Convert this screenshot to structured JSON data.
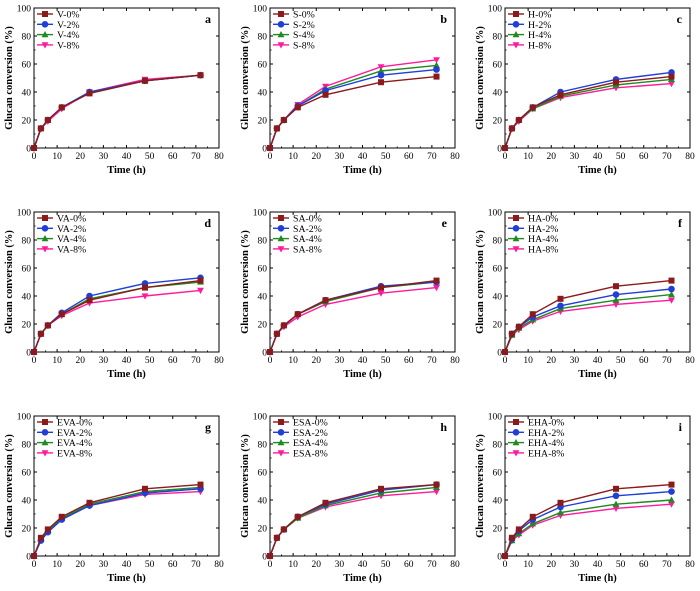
{
  "figure": {
    "colors": {
      "0%": "#8b1a1a",
      "2%": "#1f3fd6",
      "4%": "#1f8a1f",
      "8%": "#ff1a9c"
    },
    "markers": {
      "0%": "square",
      "2%": "circle",
      "4%": "triangle-up",
      "8%": "triangle-down"
    }
  },
  "chart_data": [
    {
      "type": "line",
      "panel_letter": "a",
      "xlabel": "Time (h)",
      "ylabel": "Glucan conversion (%)",
      "xlim": [
        0,
        80
      ],
      "ylim": [
        0,
        100
      ],
      "xticks": [
        "0",
        "10",
        "20",
        "30",
        "40",
        "50",
        "60",
        "70",
        "80"
      ],
      "yticks": [
        "0",
        "20",
        "40",
        "60",
        "80",
        "100"
      ],
      "x": [
        0,
        3,
        6,
        12,
        24,
        48,
        72
      ],
      "series": [
        {
          "name": "V-0%",
          "values": [
            0,
            14,
            20,
            29,
            39,
            48,
            52
          ]
        },
        {
          "name": "V-2%",
          "values": [
            0,
            14,
            20,
            29,
            40,
            48,
            52
          ]
        },
        {
          "name": "V-4%",
          "values": [
            0,
            14,
            20,
            29,
            40,
            48,
            52
          ]
        },
        {
          "name": "V-8%",
          "values": [
            0,
            14,
            19,
            28,
            40,
            49,
            52
          ]
        }
      ]
    },
    {
      "type": "line",
      "panel_letter": "b",
      "xlabel": "Time (h)",
      "ylabel": "Glucan conversion (%)",
      "xlim": [
        0,
        80
      ],
      "ylim": [
        0,
        100
      ],
      "xticks": [
        "0",
        "10",
        "20",
        "30",
        "40",
        "50",
        "60",
        "70",
        "80"
      ],
      "yticks": [
        "0",
        "20",
        "40",
        "60",
        "80",
        "100"
      ],
      "x": [
        0,
        3,
        6,
        12,
        24,
        48,
        72
      ],
      "series": [
        {
          "name": "S-0%",
          "values": [
            0,
            14,
            20,
            29,
            38,
            47,
            51
          ]
        },
        {
          "name": "S-2%",
          "values": [
            0,
            14,
            20,
            30,
            41,
            52,
            56
          ]
        },
        {
          "name": "S-4%",
          "values": [
            0,
            14,
            20,
            30,
            42,
            55,
            59
          ]
        },
        {
          "name": "S-8%",
          "values": [
            0,
            14,
            20,
            31,
            44,
            58,
            63
          ]
        }
      ]
    },
    {
      "type": "line",
      "panel_letter": "c",
      "xlabel": "Time (h)",
      "ylabel": "Glucan conversion (%)",
      "xlim": [
        0,
        80
      ],
      "ylim": [
        0,
        100
      ],
      "xticks": [
        "0",
        "10",
        "20",
        "30",
        "40",
        "50",
        "60",
        "70",
        "80"
      ],
      "yticks": [
        "0",
        "20",
        "40",
        "60",
        "80",
        "100"
      ],
      "x": [
        0,
        3,
        6,
        12,
        24,
        48,
        72
      ],
      "series": [
        {
          "name": "H-0%",
          "values": [
            0,
            14,
            20,
            29,
            38,
            47,
            51
          ]
        },
        {
          "name": "H-2%",
          "values": [
            0,
            14,
            20,
            29,
            40,
            49,
            54
          ]
        },
        {
          "name": "H-4%",
          "values": [
            0,
            14,
            20,
            28,
            37,
            45,
            49
          ]
        },
        {
          "name": "H-8%",
          "values": [
            0,
            14,
            19,
            28,
            36,
            43,
            46
          ]
        }
      ]
    },
    {
      "type": "line",
      "panel_letter": "d",
      "xlabel": "Time (h)",
      "ylabel": "Glucan conversion (%)",
      "xlim": [
        0,
        80
      ],
      "ylim": [
        0,
        100
      ],
      "xticks": [
        "0",
        "10",
        "20",
        "30",
        "40",
        "50",
        "60",
        "70",
        "80"
      ],
      "yticks": [
        "0",
        "20",
        "40",
        "60",
        "80",
        "100"
      ],
      "x": [
        0,
        3,
        6,
        12,
        24,
        48,
        72
      ],
      "series": [
        {
          "name": "VA-0%",
          "values": [
            0,
            13,
            19,
            27,
            37,
            46,
            51
          ]
        },
        {
          "name": "VA-2%",
          "values": [
            0,
            13,
            19,
            28,
            40,
            49,
            53
          ]
        },
        {
          "name": "VA-4%",
          "values": [
            0,
            13,
            19,
            27,
            38,
            46,
            50
          ]
        },
        {
          "name": "VA-8%",
          "values": [
            0,
            13,
            19,
            26,
            35,
            40,
            44
          ]
        }
      ]
    },
    {
      "type": "line",
      "panel_letter": "e",
      "xlabel": "Time (h)",
      "ylabel": "Glucan conversion (%)",
      "xlim": [
        0,
        80
      ],
      "ylim": [
        0,
        100
      ],
      "xticks": [
        "0",
        "10",
        "20",
        "30",
        "40",
        "50",
        "60",
        "70",
        "80"
      ],
      "yticks": [
        "0",
        "20",
        "40",
        "60",
        "80",
        "100"
      ],
      "x": [
        0,
        3,
        6,
        12,
        24,
        48,
        72
      ],
      "series": [
        {
          "name": "SA-0%",
          "values": [
            0,
            13,
            19,
            27,
            37,
            46,
            51
          ]
        },
        {
          "name": "SA-2%",
          "values": [
            0,
            13,
            19,
            27,
            37,
            47,
            50
          ]
        },
        {
          "name": "SA-4%",
          "values": [
            0,
            13,
            19,
            27,
            36,
            46,
            50
          ]
        },
        {
          "name": "SA-8%",
          "values": [
            0,
            13,
            18,
            25,
            34,
            42,
            46
          ]
        }
      ]
    },
    {
      "type": "line",
      "panel_letter": "f",
      "xlabel": "Time (h)",
      "ylabel": "Glucan conversion (%)",
      "xlim": [
        0,
        80
      ],
      "ylim": [
        0,
        100
      ],
      "xticks": [
        "0",
        "10",
        "20",
        "30",
        "40",
        "50",
        "60",
        "70",
        "80"
      ],
      "yticks": [
        "0",
        "20",
        "40",
        "60",
        "80",
        "100"
      ],
      "x": [
        0,
        3,
        6,
        12,
        24,
        48,
        72
      ],
      "series": [
        {
          "name": "HA-0%",
          "values": [
            0,
            13,
            18,
            27,
            38,
            47,
            51
          ]
        },
        {
          "name": "HA-2%",
          "values": [
            0,
            13,
            18,
            25,
            33,
            41,
            45
          ]
        },
        {
          "name": "HA-4%",
          "values": [
            0,
            12,
            17,
            23,
            31,
            37,
            41
          ]
        },
        {
          "name": "HA-8%",
          "values": [
            0,
            12,
            16,
            22,
            29,
            34,
            37
          ]
        }
      ]
    },
    {
      "type": "line",
      "panel_letter": "g",
      "xlabel": "Time (h)",
      "ylabel": "Glucan conversion (%)",
      "xlim": [
        0,
        80
      ],
      "ylim": [
        0,
        100
      ],
      "xticks": [
        "0",
        "10",
        "20",
        "30",
        "40",
        "50",
        "60",
        "70",
        "80"
      ],
      "yticks": [
        "0",
        "20",
        "40",
        "60",
        "80",
        "100"
      ],
      "x": [
        0,
        3,
        6,
        12,
        24,
        48,
        72
      ],
      "series": [
        {
          "name": "EVA-0%",
          "values": [
            0,
            13,
            19,
            28,
            38,
            48,
            51
          ]
        },
        {
          "name": "EVA-2%",
          "values": [
            0,
            11,
            17,
            26,
            36,
            45,
            48
          ]
        },
        {
          "name": "EVA-4%",
          "values": [
            0,
            12,
            18,
            27,
            37,
            46,
            49
          ]
        },
        {
          "name": "EVA-8%",
          "values": [
            0,
            12,
            18,
            27,
            36,
            44,
            46
          ]
        }
      ]
    },
    {
      "type": "line",
      "panel_letter": "h",
      "xlabel": "Time (h)",
      "ylabel": "Glucan conversion (%)",
      "xlim": [
        0,
        80
      ],
      "ylim": [
        0,
        100
      ],
      "xticks": [
        "0",
        "10",
        "20",
        "30",
        "40",
        "50",
        "60",
        "70",
        "80"
      ],
      "yticks": [
        "0",
        "20",
        "40",
        "60",
        "80",
        "100"
      ],
      "x": [
        0,
        3,
        6,
        12,
        24,
        48,
        72
      ],
      "series": [
        {
          "name": "ESA-0%",
          "values": [
            0,
            13,
            19,
            28,
            38,
            48,
            51
          ]
        },
        {
          "name": "ESA-2%",
          "values": [
            0,
            13,
            19,
            28,
            37,
            47,
            51
          ]
        },
        {
          "name": "ESA-4%",
          "values": [
            0,
            13,
            19,
            27,
            36,
            45,
            49
          ]
        },
        {
          "name": "ESA-8%",
          "values": [
            0,
            13,
            19,
            27,
            35,
            43,
            46
          ]
        }
      ]
    },
    {
      "type": "line",
      "panel_letter": "i",
      "xlabel": "Time (h)",
      "ylabel": "Glucan conversion (%)",
      "xlim": [
        0,
        80
      ],
      "ylim": [
        0,
        100
      ],
      "xticks": [
        "0",
        "10",
        "20",
        "30",
        "40",
        "50",
        "60",
        "70",
        "80"
      ],
      "yticks": [
        "0",
        "20",
        "40",
        "60",
        "80",
        "100"
      ],
      "x": [
        0,
        3,
        6,
        12,
        24,
        48,
        72
      ],
      "series": [
        {
          "name": "EHA-0%",
          "values": [
            0,
            13,
            19,
            28,
            38,
            48,
            51
          ]
        },
        {
          "name": "EHA-2%",
          "values": [
            0,
            12,
            18,
            26,
            35,
            43,
            46
          ]
        },
        {
          "name": "EHA-4%",
          "values": [
            0,
            11,
            16,
            23,
            31,
            37,
            40
          ]
        },
        {
          "name": "EHA-8%",
          "values": [
            0,
            11,
            15,
            22,
            29,
            34,
            37
          ]
        }
      ]
    }
  ]
}
